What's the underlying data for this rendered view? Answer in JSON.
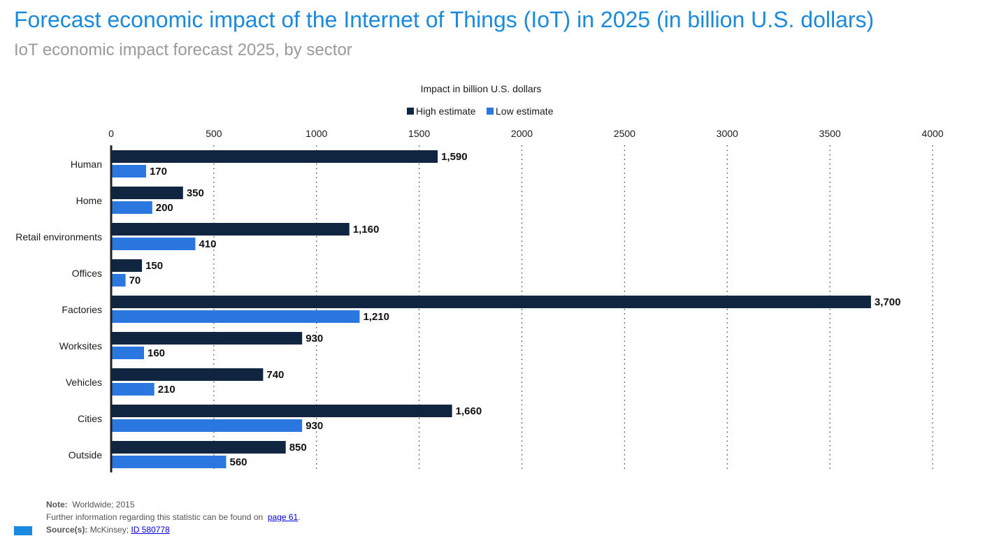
{
  "title": "Forecast economic impact of the Internet of Things (IoT) in 2025 (in billion U.S. dollars)",
  "subtitle": "IoT economic impact forecast 2025, by sector",
  "colors": {
    "title": "#1a8ae0",
    "high": "#0f2540",
    "low": "#2b77e0",
    "brand": "#1a8ae0"
  },
  "chart_data": {
    "type": "bar",
    "orientation": "horizontal",
    "xlabel": "Impact in billion U.S. dollars",
    "xlim": [
      0,
      4000
    ],
    "xticks": [
      0,
      500,
      1000,
      1500,
      2000,
      2500,
      3000,
      3500,
      4000
    ],
    "grid": true,
    "legend_position": "top-center",
    "categories": [
      "Human",
      "Home",
      "Retail environments",
      "Offices",
      "Factories",
      "Worksites",
      "Vehicles",
      "Cities",
      "Outside"
    ],
    "series": [
      {
        "name": "High estimate",
        "values": [
          1590,
          350,
          1160,
          150,
          3700,
          930,
          740,
          1660,
          850
        ],
        "labels": [
          "1,590",
          "350",
          "1,160",
          "150",
          "3,700",
          "930",
          "740",
          "1,660",
          "850"
        ]
      },
      {
        "name": "Low estimate",
        "values": [
          170,
          200,
          410,
          70,
          1210,
          160,
          210,
          930,
          560
        ],
        "labels": [
          "170",
          "200",
          "410",
          "70",
          "1,210",
          "160",
          "210",
          "930",
          "560"
        ]
      }
    ]
  },
  "footer": {
    "note_label": "Note:",
    "note_text": "Worldwide; 2015",
    "info_text": "Further information regarding this statistic can be found on",
    "info_link": "page 61",
    "info_end": ".",
    "source_label": "Source(s):",
    "source_text": "McKinsey;",
    "source_link": "ID 580778"
  }
}
